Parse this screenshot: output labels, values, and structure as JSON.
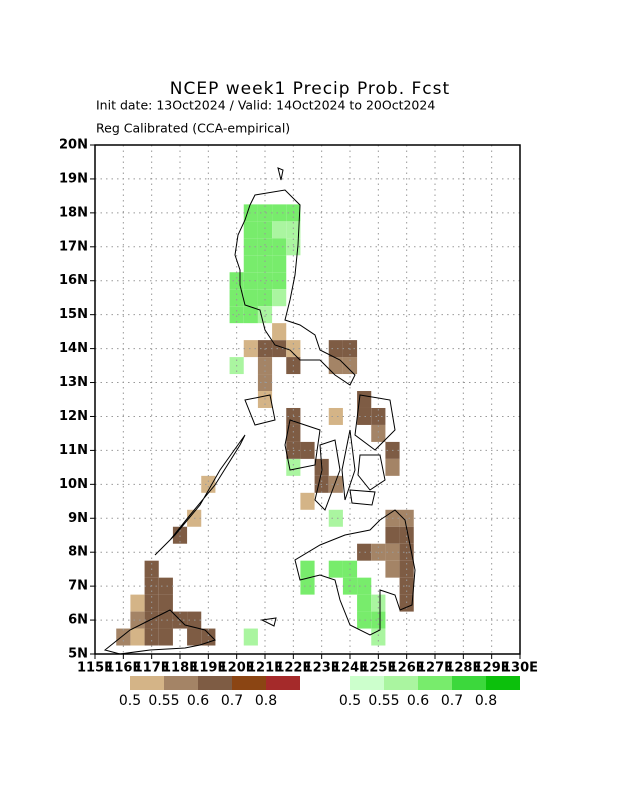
{
  "chart_data": {
    "type": "grid-map",
    "title": "NCEP week1 Precip Prob. Fcst",
    "subtitle": "Init date: 13Oct2024 / Valid: 14Oct2024 to 20Oct2024",
    "subtitle2": "Reg Calibrated (CCA-empirical)",
    "xlim": [
      115,
      130
    ],
    "ylim": [
      5,
      20
    ],
    "xticks": [
      {
        "value": 115,
        "label": "115E"
      },
      {
        "value": 116,
        "label": "116E"
      },
      {
        "value": 117,
        "label": "117E"
      },
      {
        "value": 118,
        "label": "118E"
      },
      {
        "value": 119,
        "label": "119E"
      },
      {
        "value": 120,
        "label": "120E"
      },
      {
        "value": 121,
        "label": "121E"
      },
      {
        "value": 122,
        "label": "122E"
      },
      {
        "value": 123,
        "label": "123E"
      },
      {
        "value": 124,
        "label": "124E"
      },
      {
        "value": 125,
        "label": "125E"
      },
      {
        "value": 126,
        "label": "126E"
      },
      {
        "value": 127,
        "label": "127E"
      },
      {
        "value": 128,
        "label": "128E"
      },
      {
        "value": 129,
        "label": "129E"
      },
      {
        "value": 130,
        "label": "130E"
      }
    ],
    "yticks": [
      {
        "value": 5,
        "label": "5N"
      },
      {
        "value": 6,
        "label": "6N"
      },
      {
        "value": 7,
        "label": "7N"
      },
      {
        "value": 8,
        "label": "8N"
      },
      {
        "value": 9,
        "label": "9N"
      },
      {
        "value": 10,
        "label": "10N"
      },
      {
        "value": 11,
        "label": "11N"
      },
      {
        "value": 12,
        "label": "12N"
      },
      {
        "value": 13,
        "label": "13N"
      },
      {
        "value": 14,
        "label": "14N"
      },
      {
        "value": 15,
        "label": "15N"
      },
      {
        "value": 16,
        "label": "16N"
      },
      {
        "value": 17,
        "label": "17N"
      },
      {
        "value": 18,
        "label": "18N"
      },
      {
        "value": 19,
        "label": "19N"
      },
      {
        "value": 20,
        "label": "20N"
      }
    ],
    "grid": true,
    "legend_dry": {
      "labels": [
        0.5,
        0.55,
        0.6,
        0.7,
        0.8
      ],
      "colors": [
        "#d4b487",
        "#a48466",
        "#7e5c44",
        "#8b4513",
        "#a52a2a"
      ]
    },
    "legend_wet": {
      "labels": [
        0.5,
        0.55,
        0.6,
        0.7,
        0.8
      ],
      "colors": [
        "#ccffcc",
        "#aaf5a0",
        "#78ec6c",
        "#3cd83c",
        "#0cc00c"
      ]
    },
    "dry_cells": [
      [
        120.25,
        13.75,
        0.5
      ],
      [
        120.75,
        13.75,
        0.6
      ],
      [
        121.25,
        13.75,
        0.6
      ],
      [
        121.75,
        13.75,
        0.5
      ],
      [
        121.25,
        14.25,
        0.5
      ],
      [
        120.75,
        13.25,
        0.55
      ],
      [
        121.75,
        13.25,
        0.6
      ],
      [
        120.75,
        12.75,
        0.55
      ],
      [
        120.75,
        12.25,
        0.5
      ],
      [
        123.25,
        13.25,
        0.55
      ],
      [
        123.75,
        13.25,
        0.55
      ],
      [
        123.25,
        13.75,
        0.6
      ],
      [
        123.75,
        13.75,
        0.6
      ],
      [
        121.75,
        11.25,
        0.6
      ],
      [
        121.75,
        10.75,
        0.6
      ],
      [
        122.25,
        10.75,
        0.6
      ],
      [
        121.75,
        11.75,
        0.6
      ],
      [
        122.75,
        10.25,
        0.6
      ],
      [
        122.75,
        9.75,
        0.6
      ],
      [
        123.25,
        9.75,
        0.55
      ],
      [
        122.25,
        9.25,
        0.5
      ],
      [
        123.25,
        11.75,
        0.5
      ],
      [
        124.25,
        11.75,
        0.6
      ],
      [
        124.75,
        11.75,
        0.6
      ],
      [
        124.25,
        12.25,
        0.6
      ],
      [
        124.75,
        11.25,
        0.55
      ],
      [
        125.25,
        10.75,
        0.6
      ],
      [
        125.25,
        10.25,
        0.55
      ],
      [
        125.25,
        8.75,
        0.55
      ],
      [
        125.75,
        8.75,
        0.55
      ],
      [
        125.25,
        8.25,
        0.6
      ],
      [
        125.75,
        8.25,
        0.6
      ],
      [
        124.25,
        7.75,
        0.6
      ],
      [
        124.75,
        7.75,
        0.55
      ],
      [
        125.25,
        7.75,
        0.55
      ],
      [
        125.75,
        7.75,
        0.6
      ],
      [
        125.25,
        7.25,
        0.55
      ],
      [
        125.75,
        7.25,
        0.6
      ],
      [
        125.75,
        6.75,
        0.6
      ],
      [
        125.75,
        6.25,
        0.6
      ],
      [
        117.75,
        8.25,
        0.6
      ],
      [
        118.25,
        8.75,
        0.5
      ],
      [
        118.75,
        9.75,
        0.5
      ],
      [
        116.75,
        7.25,
        0.6
      ],
      [
        116.75,
        6.75,
        0.6
      ],
      [
        117.25,
        6.75,
        0.6
      ],
      [
        116.75,
        6.25,
        0.6
      ],
      [
        117.25,
        6.25,
        0.6
      ],
      [
        116.25,
        6.25,
        0.5
      ],
      [
        116.75,
        5.75,
        0.6
      ],
      [
        117.25,
        5.75,
        0.6
      ],
      [
        116.25,
        5.75,
        0.55
      ],
      [
        117.75,
        5.75,
        0.6
      ],
      [
        118.25,
        5.75,
        0.6
      ],
      [
        116.25,
        5.25,
        0.5
      ],
      [
        115.75,
        5.25,
        0.55
      ],
      [
        116.75,
        5.25,
        0.6
      ],
      [
        117.25,
        5.25,
        0.6
      ],
      [
        118.25,
        5.25,
        0.6
      ],
      [
        118.75,
        5.25,
        0.6
      ]
    ],
    "wet_cells": [
      [
        120.25,
        17.75,
        0.6
      ],
      [
        120.75,
        17.75,
        0.6
      ],
      [
        121.25,
        17.75,
        0.6
      ],
      [
        121.75,
        17.75,
        0.6
      ],
      [
        120.25,
        17.25,
        0.6
      ],
      [
        120.75,
        17.25,
        0.6
      ],
      [
        121.25,
        17.25,
        0.55
      ],
      [
        121.75,
        17.25,
        0.55
      ],
      [
        120.25,
        16.75,
        0.6
      ],
      [
        120.75,
        16.75,
        0.6
      ],
      [
        121.25,
        16.75,
        0.6
      ],
      [
        121.75,
        16.75,
        0.55
      ],
      [
        120.25,
        16.25,
        0.6
      ],
      [
        120.75,
        16.25,
        0.6
      ],
      [
        121.25,
        16.25,
        0.6
      ],
      [
        119.75,
        15.75,
        0.6
      ],
      [
        120.25,
        15.75,
        0.6
      ],
      [
        120.75,
        15.75,
        0.6
      ],
      [
        121.25,
        15.75,
        0.6
      ],
      [
        119.75,
        15.25,
        0.6
      ],
      [
        120.25,
        15.25,
        0.6
      ],
      [
        120.75,
        15.25,
        0.6
      ],
      [
        121.25,
        15.25,
        0.55
      ],
      [
        119.75,
        14.75,
        0.6
      ],
      [
        120.25,
        14.75,
        0.6
      ],
      [
        120.75,
        14.75,
        0.55
      ],
      [
        119.75,
        13.25,
        0.55
      ],
      [
        121.75,
        10.25,
        0.55
      ],
      [
        123.25,
        7.25,
        0.6
      ],
      [
        123.75,
        7.25,
        0.6
      ],
      [
        123.75,
        6.75,
        0.6
      ],
      [
        124.25,
        6.75,
        0.6
      ],
      [
        124.25,
        6.25,
        0.6
      ],
      [
        124.75,
        6.25,
        0.55
      ],
      [
        124.25,
        5.75,
        0.6
      ],
      [
        124.75,
        5.75,
        0.6
      ],
      [
        124.75,
        5.25,
        0.55
      ],
      [
        122.25,
        6.75,
        0.6
      ],
      [
        122.25,
        7.25,
        0.6
      ],
      [
        123.25,
        8.75,
        0.55
      ],
      [
        120.25,
        5.25,
        0.55
      ]
    ]
  }
}
